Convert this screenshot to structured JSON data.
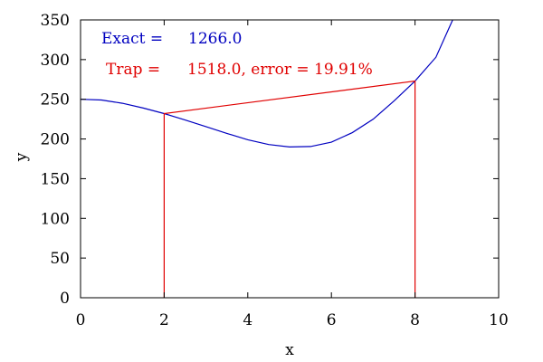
{
  "chart_data": {
    "type": "line",
    "title": "",
    "xlabel": "x",
    "ylabel": "y",
    "xlim": [
      0,
      10
    ],
    "ylim": [
      0,
      350
    ],
    "x_ticks": [
      0,
      2,
      4,
      6,
      8,
      10
    ],
    "x_tick_labels": [
      "0",
      "2",
      "4",
      "6",
      "8",
      "10"
    ],
    "y_ticks": [
      0,
      50,
      100,
      150,
      200,
      250,
      300,
      350
    ],
    "y_tick_labels": [
      "0",
      "50",
      "100",
      "150",
      "200",
      "250",
      "300",
      "350"
    ],
    "grid": false,
    "series": [
      {
        "color": "#0000c0",
        "x": [
          0,
          0.5,
          1,
          1.5,
          2,
          2.5,
          3,
          3.5,
          4,
          4.5,
          5,
          5.5,
          6,
          6.5,
          7,
          7.5,
          8,
          8.5,
          8.9
        ],
        "y": [
          250,
          249.1,
          245,
          239,
          232,
          224,
          215.5,
          207,
          199,
          193,
          190,
          190.5,
          196,
          208,
          225,
          248,
          273,
          303,
          350
        ]
      },
      {
        "color": "#e00000",
        "x": [
          2,
          2,
          8,
          8
        ],
        "y": [
          0,
          232,
          273,
          0
        ]
      }
    ],
    "annotations": [
      {
        "key": "exact",
        "label": "Exact =",
        "value": "1266.0",
        "color": "#0000c0"
      },
      {
        "key": "trap",
        "label": "Trap =",
        "value": "1518.0, error = 19.91%",
        "color": "#e00000"
      }
    ]
  }
}
